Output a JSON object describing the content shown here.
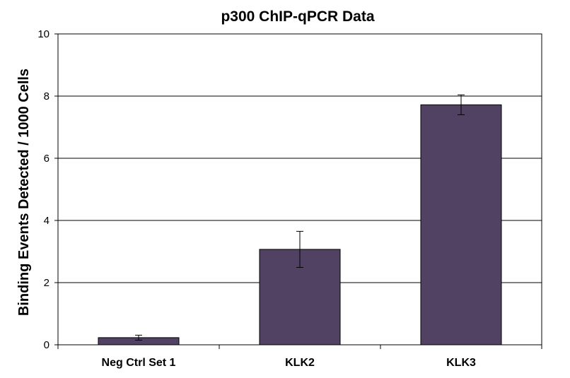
{
  "chart_data": {
    "type": "bar",
    "title": "p300 ChIP-qPCR Data",
    "xlabel": "",
    "ylabel": "Binding Events Detected / 1000 Cells",
    "ylim": [
      0,
      10
    ],
    "yticks": [
      0,
      2,
      4,
      6,
      8,
      10
    ],
    "grid": true,
    "categories": [
      "Neg Ctrl Set 1",
      "KLK2",
      "KLK3"
    ],
    "values": [
      0.23,
      3.07,
      7.72
    ],
    "errors": [
      0.08,
      0.58,
      0.32
    ],
    "bar_color": "#514263"
  }
}
